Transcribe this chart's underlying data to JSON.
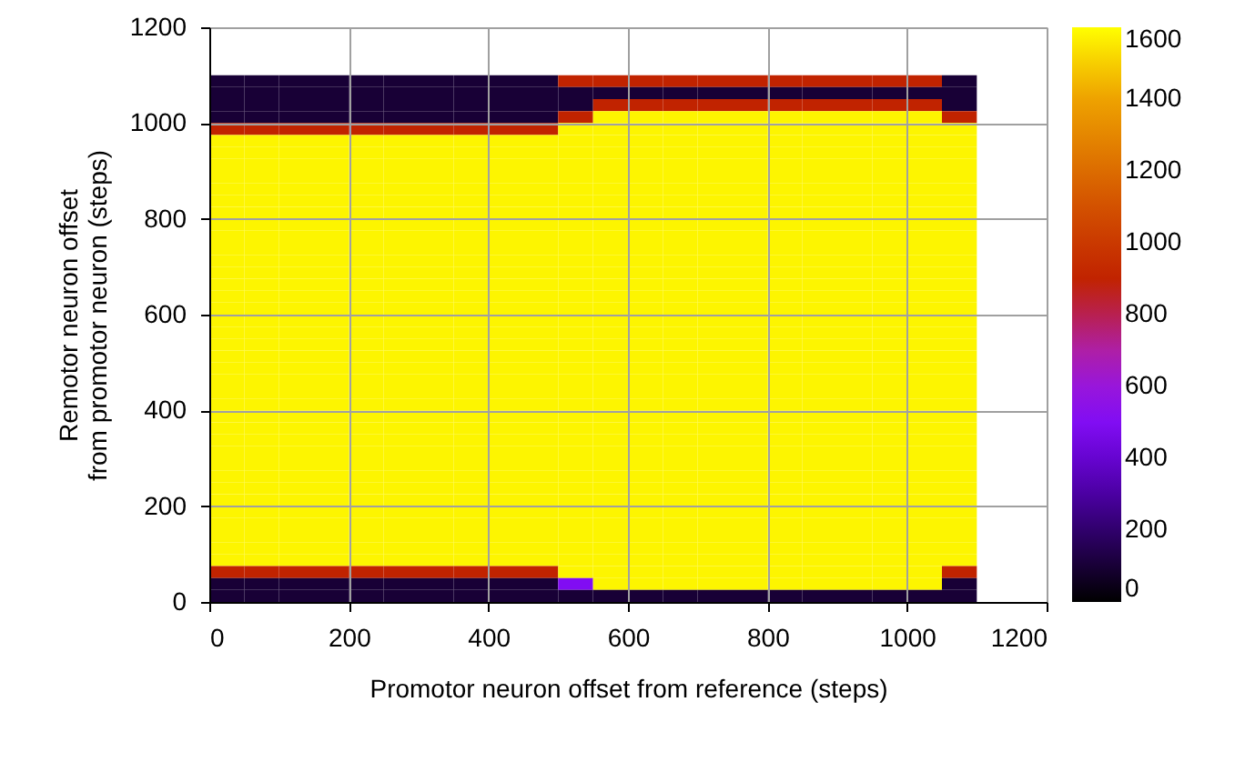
{
  "chart_data": {
    "type": "heatmap",
    "xlabel": "Promotor neuron offset from reference (steps)",
    "ylabel": "Remotor neuron offset\nfrom promotor neuron (steps)",
    "x": [
      25,
      75,
      125,
      175,
      225,
      275,
      325,
      375,
      425,
      475,
      525,
      575,
      625,
      675,
      725,
      775,
      825,
      875,
      925,
      975,
      1025,
      1075
    ],
    "y": [
      1087.5,
      1062.5,
      1037.5,
      1012.5,
      987.5,
      962.5,
      937.5,
      912.5,
      887.5,
      862.5,
      837.5,
      812.5,
      787.5,
      762.5,
      737.5,
      712.5,
      687.5,
      662.5,
      637.5,
      612.5,
      587.5,
      562.5,
      537.5,
      512.5,
      487.5,
      462.5,
      437.5,
      412.5,
      387.5,
      362.5,
      337.5,
      312.5,
      287.5,
      262.5,
      237.5,
      212.5,
      187.5,
      162.5,
      137.5,
      112.5,
      87.5,
      62.5,
      37.5,
      12.5
    ],
    "cells": [
      [
        100,
        100,
        100,
        100,
        100,
        100,
        100,
        100,
        100,
        100,
        900,
        900,
        900,
        900,
        900,
        900,
        900,
        900,
        900,
        900,
        900,
        100
      ],
      [
        100,
        100,
        100,
        100,
        100,
        100,
        100,
        100,
        100,
        100,
        100,
        100,
        100,
        100,
        100,
        100,
        100,
        100,
        100,
        100,
        100,
        100
      ],
      [
        100,
        100,
        100,
        100,
        100,
        100,
        100,
        100,
        100,
        100,
        100,
        900,
        900,
        900,
        900,
        900,
        900,
        900,
        900,
        900,
        900,
        100
      ],
      [
        100,
        100,
        100,
        100,
        100,
        100,
        100,
        100,
        100,
        100,
        900,
        1580,
        1580,
        1580,
        1580,
        1580,
        1580,
        1580,
        1580,
        1580,
        1580,
        900
      ],
      [
        900,
        900,
        900,
        900,
        900,
        900,
        900,
        900,
        900,
        900,
        1580,
        1580,
        1580,
        1580,
        1580,
        1580,
        1580,
        1580,
        1580,
        1580,
        1580,
        1580
      ],
      [
        1580,
        1580,
        1580,
        1580,
        1580,
        1580,
        1580,
        1580,
        1580,
        1580,
        1580,
        1580,
        1580,
        1580,
        1580,
        1580,
        1580,
        1580,
        1580,
        1580,
        1580,
        1580
      ],
      [
        1580,
        1580,
        1580,
        1580,
        1580,
        1580,
        1580,
        1580,
        1580,
        1580,
        1580,
        1580,
        1580,
        1580,
        1580,
        1580,
        1580,
        1580,
        1580,
        1580,
        1580,
        1580
      ],
      [
        1580,
        1580,
        1580,
        1580,
        1580,
        1580,
        1580,
        1580,
        1580,
        1580,
        1580,
        1580,
        1580,
        1580,
        1580,
        1580,
        1580,
        1580,
        1580,
        1580,
        1580,
        1580
      ],
      [
        1580,
        1580,
        1580,
        1580,
        1580,
        1580,
        1580,
        1580,
        1580,
        1580,
        1580,
        1580,
        1580,
        1580,
        1580,
        1580,
        1580,
        1580,
        1580,
        1580,
        1580,
        1580
      ],
      [
        1580,
        1580,
        1580,
        1580,
        1580,
        1580,
        1580,
        1580,
        1580,
        1580,
        1580,
        1580,
        1580,
        1580,
        1580,
        1580,
        1580,
        1580,
        1580,
        1580,
        1580,
        1580
      ],
      [
        1580,
        1580,
        1580,
        1580,
        1580,
        1580,
        1580,
        1580,
        1580,
        1580,
        1580,
        1580,
        1580,
        1580,
        1580,
        1580,
        1580,
        1580,
        1580,
        1580,
        1580,
        1580
      ],
      [
        1580,
        1580,
        1580,
        1580,
        1580,
        1580,
        1580,
        1580,
        1580,
        1580,
        1580,
        1580,
        1580,
        1580,
        1580,
        1580,
        1580,
        1580,
        1580,
        1580,
        1580,
        1580
      ],
      [
        1580,
        1580,
        1580,
        1580,
        1580,
        1580,
        1580,
        1580,
        1580,
        1580,
        1580,
        1580,
        1580,
        1580,
        1580,
        1580,
        1580,
        1580,
        1580,
        1580,
        1580,
        1580
      ],
      [
        1580,
        1580,
        1580,
        1580,
        1580,
        1580,
        1580,
        1580,
        1580,
        1580,
        1580,
        1580,
        1580,
        1580,
        1580,
        1580,
        1580,
        1580,
        1580,
        1580,
        1580,
        1580
      ],
      [
        1580,
        1580,
        1580,
        1580,
        1580,
        1580,
        1580,
        1580,
        1580,
        1580,
        1580,
        1580,
        1580,
        1580,
        1580,
        1580,
        1580,
        1580,
        1580,
        1580,
        1580,
        1580
      ],
      [
        1580,
        1580,
        1580,
        1580,
        1580,
        1580,
        1580,
        1580,
        1580,
        1580,
        1580,
        1580,
        1580,
        1580,
        1580,
        1580,
        1580,
        1580,
        1580,
        1580,
        1580,
        1580
      ],
      [
        1580,
        1580,
        1580,
        1580,
        1580,
        1580,
        1580,
        1580,
        1580,
        1580,
        1580,
        1580,
        1580,
        1580,
        1580,
        1580,
        1580,
        1580,
        1580,
        1580,
        1580,
        1580
      ],
      [
        1580,
        1580,
        1580,
        1580,
        1580,
        1580,
        1580,
        1580,
        1580,
        1580,
        1580,
        1580,
        1580,
        1580,
        1580,
        1580,
        1580,
        1580,
        1580,
        1580,
        1580,
        1580
      ],
      [
        1580,
        1580,
        1580,
        1580,
        1580,
        1580,
        1580,
        1580,
        1580,
        1580,
        1580,
        1580,
        1580,
        1580,
        1580,
        1580,
        1580,
        1580,
        1580,
        1580,
        1580,
        1580
      ],
      [
        1580,
        1580,
        1580,
        1580,
        1580,
        1580,
        1580,
        1580,
        1580,
        1580,
        1580,
        1580,
        1580,
        1580,
        1580,
        1580,
        1580,
        1580,
        1580,
        1580,
        1580,
        1580
      ],
      [
        1580,
        1580,
        1580,
        1580,
        1580,
        1580,
        1580,
        1580,
        1580,
        1580,
        1580,
        1580,
        1580,
        1580,
        1580,
        1580,
        1580,
        1580,
        1580,
        1580,
        1580,
        1580
      ],
      [
        1580,
        1580,
        1580,
        1580,
        1580,
        1580,
        1580,
        1580,
        1580,
        1580,
        1580,
        1580,
        1580,
        1580,
        1580,
        1580,
        1580,
        1580,
        1580,
        1580,
        1580,
        1580
      ],
      [
        1580,
        1580,
        1580,
        1580,
        1580,
        1580,
        1580,
        1580,
        1580,
        1580,
        1580,
        1580,
        1580,
        1580,
        1580,
        1580,
        1580,
        1580,
        1580,
        1580,
        1580,
        1580
      ],
      [
        1580,
        1580,
        1580,
        1580,
        1580,
        1580,
        1580,
        1580,
        1580,
        1580,
        1580,
        1580,
        1580,
        1580,
        1580,
        1580,
        1580,
        1580,
        1580,
        1580,
        1580,
        1580
      ],
      [
        1580,
        1580,
        1580,
        1580,
        1580,
        1580,
        1580,
        1580,
        1580,
        1580,
        1580,
        1580,
        1580,
        1580,
        1580,
        1580,
        1580,
        1580,
        1580,
        1580,
        1580,
        1580
      ],
      [
        1580,
        1580,
        1580,
        1580,
        1580,
        1580,
        1580,
        1580,
        1580,
        1580,
        1580,
        1580,
        1580,
        1580,
        1580,
        1580,
        1580,
        1580,
        1580,
        1580,
        1580,
        1580
      ],
      [
        1580,
        1580,
        1580,
        1580,
        1580,
        1580,
        1580,
        1580,
        1580,
        1580,
        1580,
        1580,
        1580,
        1580,
        1580,
        1580,
        1580,
        1580,
        1580,
        1580,
        1580,
        1580
      ],
      [
        1580,
        1580,
        1580,
        1580,
        1580,
        1580,
        1580,
        1580,
        1580,
        1580,
        1580,
        1580,
        1580,
        1580,
        1580,
        1580,
        1580,
        1580,
        1580,
        1580,
        1580,
        1580
      ],
      [
        1580,
        1580,
        1580,
        1580,
        1580,
        1580,
        1580,
        1580,
        1580,
        1580,
        1580,
        1580,
        1580,
        1580,
        1580,
        1580,
        1580,
        1580,
        1580,
        1580,
        1580,
        1580
      ],
      [
        1580,
        1580,
        1580,
        1580,
        1580,
        1580,
        1580,
        1580,
        1580,
        1580,
        1580,
        1580,
        1580,
        1580,
        1580,
        1580,
        1580,
        1580,
        1580,
        1580,
        1580,
        1580
      ],
      [
        1580,
        1580,
        1580,
        1580,
        1580,
        1580,
        1580,
        1580,
        1580,
        1580,
        1580,
        1580,
        1580,
        1580,
        1580,
        1580,
        1580,
        1580,
        1580,
        1580,
        1580,
        1580
      ],
      [
        1580,
        1580,
        1580,
        1580,
        1580,
        1580,
        1580,
        1580,
        1580,
        1580,
        1580,
        1580,
        1580,
        1580,
        1580,
        1580,
        1580,
        1580,
        1580,
        1580,
        1580,
        1580
      ],
      [
        1580,
        1580,
        1580,
        1580,
        1580,
        1580,
        1580,
        1580,
        1580,
        1580,
        1580,
        1580,
        1580,
        1580,
        1580,
        1580,
        1580,
        1580,
        1580,
        1580,
        1580,
        1580
      ],
      [
        1580,
        1580,
        1580,
        1580,
        1580,
        1580,
        1580,
        1580,
        1580,
        1580,
        1580,
        1580,
        1580,
        1580,
        1580,
        1580,
        1580,
        1580,
        1580,
        1580,
        1580,
        1580
      ],
      [
        1580,
        1580,
        1580,
        1580,
        1580,
        1580,
        1580,
        1580,
        1580,
        1580,
        1580,
        1580,
        1580,
        1580,
        1580,
        1580,
        1580,
        1580,
        1580,
        1580,
        1580,
        1580
      ],
      [
        1580,
        1580,
        1580,
        1580,
        1580,
        1580,
        1580,
        1580,
        1580,
        1580,
        1580,
        1580,
        1580,
        1580,
        1580,
        1580,
        1580,
        1580,
        1580,
        1580,
        1580,
        1580
      ],
      [
        1580,
        1580,
        1580,
        1580,
        1580,
        1580,
        1580,
        1580,
        1580,
        1580,
        1580,
        1580,
        1580,
        1580,
        1580,
        1580,
        1580,
        1580,
        1580,
        1580,
        1580,
        1580
      ],
      [
        1580,
        1580,
        1580,
        1580,
        1580,
        1580,
        1580,
        1580,
        1580,
        1580,
        1580,
        1580,
        1580,
        1580,
        1580,
        1580,
        1580,
        1580,
        1580,
        1580,
        1580,
        1580
      ],
      [
        1580,
        1580,
        1580,
        1580,
        1580,
        1580,
        1580,
        1580,
        1580,
        1580,
        1580,
        1580,
        1580,
        1580,
        1580,
        1580,
        1580,
        1580,
        1580,
        1580,
        1580,
        1580
      ],
      [
        1580,
        1580,
        1580,
        1580,
        1580,
        1580,
        1580,
        1580,
        1580,
        1580,
        1580,
        1580,
        1580,
        1580,
        1580,
        1580,
        1580,
        1580,
        1580,
        1580,
        1580,
        1580
      ],
      [
        1580,
        1580,
        1580,
        1580,
        1580,
        1580,
        1580,
        1580,
        1580,
        1580,
        1580,
        1580,
        1580,
        1580,
        1580,
        1580,
        1580,
        1580,
        1580,
        1580,
        1580,
        1580
      ],
      [
        900,
        900,
        900,
        900,
        900,
        900,
        900,
        900,
        900,
        900,
        1580,
        1580,
        1580,
        1580,
        1580,
        1580,
        1580,
        1580,
        1580,
        1580,
        1580,
        900
      ],
      [
        100,
        100,
        100,
        100,
        100,
        100,
        100,
        100,
        100,
        100,
        500,
        1580,
        1580,
        1580,
        1580,
        1580,
        1580,
        1580,
        1580,
        1580,
        1580,
        100
      ],
      [
        100,
        100,
        100,
        100,
        100,
        100,
        100,
        100,
        100,
        100,
        100,
        100,
        100,
        100,
        100,
        100,
        100,
        100,
        100,
        100,
        100,
        100
      ]
    ],
    "colors": [
      "#000000",
      "#2a0060",
      "#5a00c0",
      "#8a10ff",
      "#b020a0",
      "#c02000",
      "#d04800",
      "#e07800",
      "#f0a800",
      "#ffff00"
    ],
    "clim": [
      0,
      1600
    ],
    "cticks": [
      0,
      200,
      400,
      600,
      800,
      1000,
      1200,
      1400,
      1600
    ],
    "xlim": [
      0,
      1200
    ],
    "xticks": [
      0,
      200,
      400,
      600,
      800,
      1000,
      1200
    ],
    "ylim": [
      0,
      1200
    ],
    "yticks": [
      0,
      200,
      400,
      600,
      800,
      1000,
      1200
    ],
    "grid": true
  }
}
